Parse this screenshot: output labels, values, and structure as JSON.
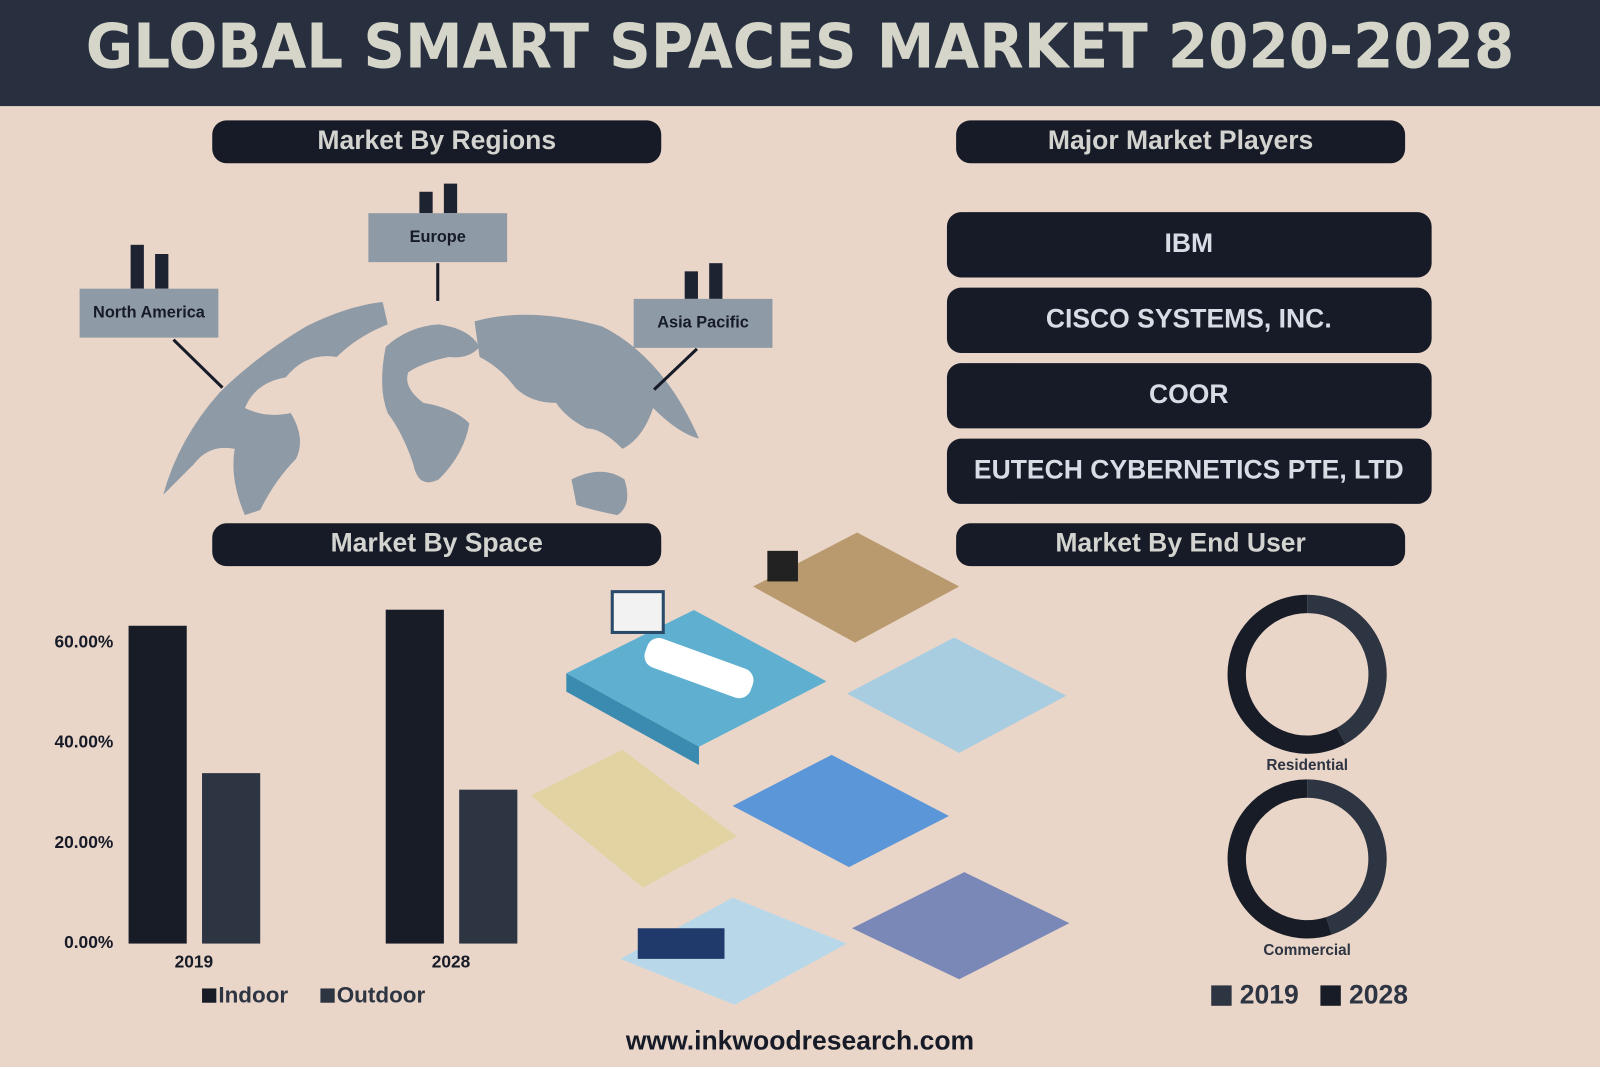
{
  "title": "GLOBAL SMART SPACES MARKET 2020-2028",
  "sections": {
    "regions": "Market By Regions",
    "players": "Major Market Players",
    "space": "Market By Space",
    "end_user": "Market By End User"
  },
  "regions": [
    {
      "name": "North America",
      "values": [
        43,
        34
      ]
    },
    {
      "name": "Europe",
      "values": [
        21,
        29
      ]
    },
    {
      "name": "Asia Pacific",
      "values": [
        27,
        35
      ]
    }
  ],
  "players": [
    "IBM",
    "CISCO SYSTEMS, INC.",
    "COOR",
    "EUTECH CYBERNETICS PTE, LTD"
  ],
  "website": "www.inkwoodresearch.com",
  "chart_data": [
    {
      "type": "bar",
      "categories": [
        "2019",
        "2028"
      ],
      "series": [
        {
          "name": "Indoor",
          "color": "#171c27",
          "values": [
            63.4,
            66.6
          ]
        },
        {
          "name": "Outdoor",
          "color": "#2d3442",
          "values": [
            34.0,
            30.7
          ]
        }
      ],
      "ylim": [
        0,
        70
      ],
      "yticks": [
        {
          "value": 0,
          "label": "0.00%"
        },
        {
          "value": 20,
          "label": "20.00%"
        },
        {
          "value": 40,
          "label": "40.00%"
        },
        {
          "value": 60,
          "label": "60.00%"
        }
      ]
    },
    {
      "type": "donut",
      "categories": [
        "Residential",
        "Commercial"
      ],
      "series": [
        {
          "name": "2019",
          "color": "#2e3542",
          "values": [
            42,
            45
          ]
        },
        {
          "name": "2028",
          "color": "#171c27",
          "values": [
            58,
            55
          ]
        }
      ]
    }
  ]
}
